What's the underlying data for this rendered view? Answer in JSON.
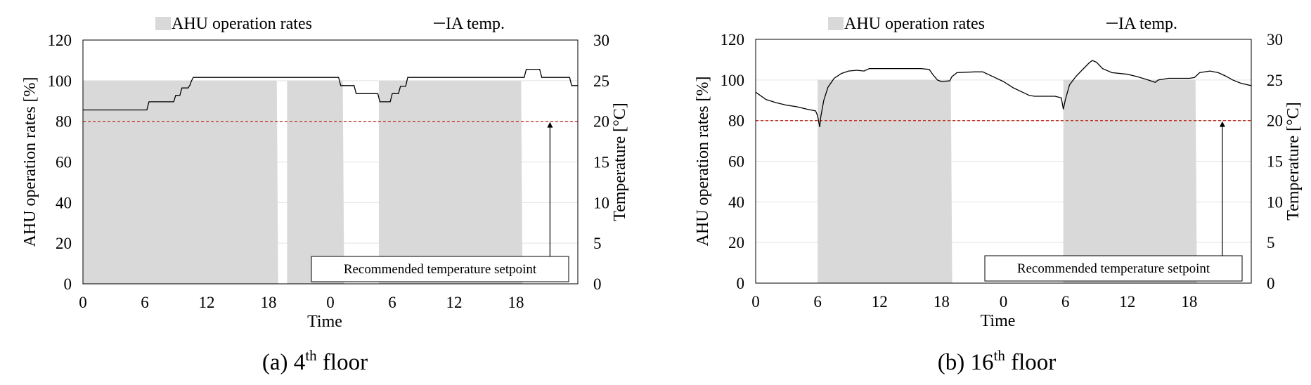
{
  "chart_data": [
    {
      "type": "area+line",
      "caption": {
        "prefix": "(a) 4",
        "sup": "th",
        "suffix": " floor"
      },
      "legend": {
        "bar_label": "AHU operation rates",
        "line_label": "IA temp.",
        "placement": "top"
      },
      "xlabel": "Time",
      "ylabel_left": "AHU operation rates [%]",
      "ylabel_right": "Temperature [°C]",
      "x_tick_labels": [
        "0",
        "6",
        "12",
        "18",
        "0",
        "6",
        "12",
        "18"
      ],
      "xlim_hours": [
        0,
        48
      ],
      "ylim_left": [
        0,
        120
      ],
      "yticks_left": [
        "0",
        "20",
        "40",
        "60",
        "80",
        "100",
        "120"
      ],
      "ylim_right": [
        0,
        30
      ],
      "yticks_right": [
        "0",
        "5",
        "10",
        "15",
        "20",
        "25",
        "30"
      ],
      "grid": "horizontal",
      "setpoint": {
        "label": "Recommended temperature setpoint",
        "value": 20,
        "arrow_hour": 45.3
      },
      "operation_periods": [
        {
          "start": 0,
          "end": 18.8,
          "value": 100
        },
        {
          "start": 19.8,
          "end": 25.2,
          "value": 100
        },
        {
          "start": 28.7,
          "end": 42.5,
          "value": 100
        }
      ],
      "temperature": [
        [
          0,
          21.4
        ],
        [
          6.2,
          21.4
        ],
        [
          6.4,
          22.4
        ],
        [
          8.8,
          22.4
        ],
        [
          9.0,
          23.2
        ],
        [
          9.4,
          23.2
        ],
        [
          9.6,
          24.1
        ],
        [
          10.2,
          24.1
        ],
        [
          10.4,
          24.5
        ],
        [
          10.5,
          24.9
        ],
        [
          10.7,
          25.4
        ],
        [
          24.8,
          25.4
        ],
        [
          25.0,
          24.4
        ],
        [
          26.3,
          24.4
        ],
        [
          26.5,
          23.4
        ],
        [
          28.6,
          23.4
        ],
        [
          28.8,
          22.4
        ],
        [
          29.8,
          22.4
        ],
        [
          30.0,
          23.4
        ],
        [
          30.6,
          23.4
        ],
        [
          30.8,
          24.3
        ],
        [
          31.3,
          24.3
        ],
        [
          31.5,
          25.4
        ],
        [
          42.8,
          25.4
        ],
        [
          43.0,
          26.4
        ],
        [
          44.3,
          26.4
        ],
        [
          44.5,
          25.4
        ],
        [
          47.2,
          25.4
        ],
        [
          47.4,
          24.4
        ],
        [
          48,
          24.4
        ]
      ]
    },
    {
      "type": "area+line",
      "caption": {
        "prefix": "(b) 16",
        "sup": "th",
        "suffix": " floor"
      },
      "legend": {
        "bar_label": "AHU operation rates",
        "line_label": "IA temp.",
        "placement": "top"
      },
      "xlabel": "Time",
      "ylabel_left": "AHU operation rates [%]",
      "ylabel_right": "Temperature [°C]",
      "x_tick_labels": [
        "0",
        "6",
        "12",
        "18",
        "0",
        "6",
        "12",
        "18"
      ],
      "xlim_hours": [
        0,
        48
      ],
      "ylim_left": [
        0,
        120
      ],
      "yticks_left": [
        "0",
        "20",
        "40",
        "60",
        "80",
        "100",
        "120"
      ],
      "ylim_right": [
        0,
        30
      ],
      "yticks_right": [
        "0",
        "5",
        "10",
        "15",
        "20",
        "25",
        "30"
      ],
      "grid": "horizontal",
      "setpoint": {
        "label": "Recommended temperature setpoint",
        "value": 20,
        "arrow_hour": 45.2
      },
      "operation_periods": [
        {
          "start": 6.0,
          "end": 18.9,
          "value": 100
        },
        {
          "start": 29.8,
          "end": 42.6,
          "value": 100
        }
      ],
      "temperature": [
        [
          0,
          23.5
        ],
        [
          1,
          22.6
        ],
        [
          2,
          22.2
        ],
        [
          3,
          21.9
        ],
        [
          4,
          21.7
        ],
        [
          5,
          21.4
        ],
        [
          5.8,
          21.2
        ],
        [
          6.0,
          20.6
        ],
        [
          6.2,
          19.2
        ],
        [
          6.3,
          20.4
        ],
        [
          6.6,
          22.5
        ],
        [
          7.0,
          24.1
        ],
        [
          7.6,
          25.2
        ],
        [
          8.3,
          25.8
        ],
        [
          9.0,
          26.1
        ],
        [
          9.8,
          26.2
        ],
        [
          10.5,
          26.1
        ],
        [
          11.0,
          26.4
        ],
        [
          12,
          26.4
        ],
        [
          14,
          26.4
        ],
        [
          16,
          26.4
        ],
        [
          16.8,
          26.3
        ],
        [
          17.2,
          25.6
        ],
        [
          17.6,
          25.0
        ],
        [
          18.0,
          24.8
        ],
        [
          18.8,
          24.9
        ],
        [
          19.0,
          25.4
        ],
        [
          19.5,
          25.9
        ],
        [
          21.2,
          26.0
        ],
        [
          22.0,
          26.0
        ],
        [
          23,
          25.4
        ],
        [
          24,
          24.8
        ],
        [
          25,
          24.0
        ],
        [
          26,
          23.4
        ],
        [
          26.5,
          23.1
        ],
        [
          27,
          23.0
        ],
        [
          28,
          23.0
        ],
        [
          29,
          23.0
        ],
        [
          29.6,
          22.8
        ],
        [
          29.8,
          21.4
        ],
        [
          30.0,
          22.6
        ],
        [
          30.4,
          24.4
        ],
        [
          31,
          25.4
        ],
        [
          31.6,
          26.2
        ],
        [
          32.3,
          27.1
        ],
        [
          32.6,
          27.4
        ],
        [
          33.0,
          27.2
        ],
        [
          33.6,
          26.4
        ],
        [
          34.5,
          25.9
        ],
        [
          36,
          25.7
        ],
        [
          37,
          25.4
        ],
        [
          38,
          25.0
        ],
        [
          38.7,
          24.7
        ],
        [
          39,
          25.0
        ],
        [
          40,
          25.2
        ],
        [
          41,
          25.2
        ],
        [
          42,
          25.2
        ],
        [
          42.5,
          25.3
        ],
        [
          43.0,
          25.9
        ],
        [
          44,
          26.1
        ],
        [
          44.8,
          25.9
        ],
        [
          45.5,
          25.5
        ],
        [
          46.2,
          25.0
        ],
        [
          47,
          24.6
        ],
        [
          48,
          24.3
        ]
      ]
    }
  ]
}
